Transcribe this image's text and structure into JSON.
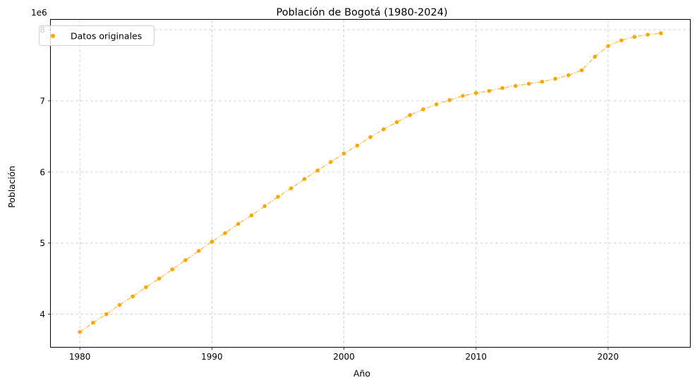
{
  "chart_data": {
    "type": "scatter",
    "title": "Población de Bogotá (1980-2024)",
    "xlabel": "Año",
    "ylabel": "Población",
    "y_offset_label": "1e6",
    "xlim": [
      1977.8,
      2026.2
    ],
    "ylim": [
      3540000,
      8140000
    ],
    "x_ticks": [
      1980,
      1990,
      2000,
      2010,
      2020
    ],
    "y_ticks": [
      4000000,
      5000000,
      6000000,
      7000000,
      8000000
    ],
    "y_tick_labels": [
      "4",
      "5",
      "6",
      "7",
      "8"
    ],
    "grid": true,
    "legend_position": "top-left",
    "colors": {
      "series": "#ffa500",
      "grid": "#c8c8c8"
    },
    "series": [
      {
        "name": "Datos originales",
        "marker": "circle",
        "connect_line": "dash-dot",
        "x": [
          1980,
          1981,
          1982,
          1983,
          1984,
          1985,
          1986,
          1987,
          1988,
          1989,
          1990,
          1991,
          1992,
          1993,
          1994,
          1995,
          1996,
          1997,
          1998,
          1999,
          2000,
          2001,
          2002,
          2003,
          2004,
          2005,
          2006,
          2007,
          2008,
          2009,
          2010,
          2011,
          2012,
          2013,
          2014,
          2015,
          2016,
          2017,
          2018,
          2019,
          2020,
          2021,
          2022,
          2023,
          2024
        ],
        "y": [
          3750000,
          3880000,
          4000000,
          4130000,
          4250000,
          4380000,
          4500000,
          4630000,
          4760000,
          4890000,
          5020000,
          5140000,
          5270000,
          5390000,
          5520000,
          5650000,
          5770000,
          5900000,
          6020000,
          6140000,
          6260000,
          6370000,
          6490000,
          6600000,
          6700000,
          6800000,
          6880000,
          6950000,
          7010000,
          7070000,
          7110000,
          7140000,
          7180000,
          7210000,
          7240000,
          7270000,
          7310000,
          7360000,
          7430000,
          7620000,
          7770000,
          7850000,
          7900000,
          7930000,
          7950000
        ]
      }
    ]
  }
}
